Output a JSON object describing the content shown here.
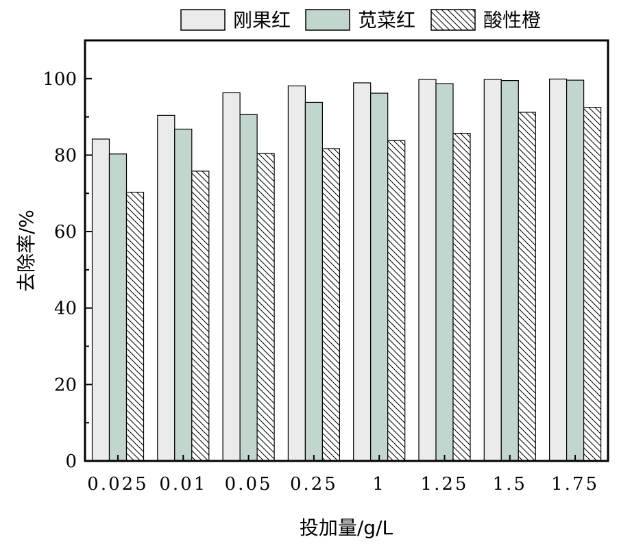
{
  "chart_data": {
    "type": "bar",
    "categories": [
      "0.025",
      "0.01",
      "0.05",
      "0.25",
      "1",
      "1.25",
      "1.5",
      "1.75"
    ],
    "series": [
      {
        "name": "刚果红",
        "values": [
          84.2,
          90.4,
          96.3,
          98.1,
          98.9,
          99.8,
          99.8,
          99.9
        ]
      },
      {
        "name": "苋菜红",
        "values": [
          80.3,
          86.8,
          90.6,
          93.8,
          96.2,
          98.7,
          99.5,
          99.6
        ]
      },
      {
        "name": "酸性橙",
        "values": [
          70.3,
          75.8,
          80.4,
          81.7,
          83.8,
          85.7,
          91.2,
          92.5
        ]
      }
    ],
    "xlabel": "投加量/g/L",
    "ylabel": "去除率/%",
    "ylim": [
      0,
      110
    ],
    "yticks": [
      0,
      20,
      40,
      60,
      80,
      100
    ],
    "legend_position": "top",
    "grid": false,
    "series_styles": [
      {
        "fill": "#ebebeb",
        "pattern": "solid"
      },
      {
        "fill": "#c3d6cd",
        "pattern": "solid"
      },
      {
        "fill": "#ffffff",
        "pattern": "diagonal-hatch"
      }
    ]
  }
}
